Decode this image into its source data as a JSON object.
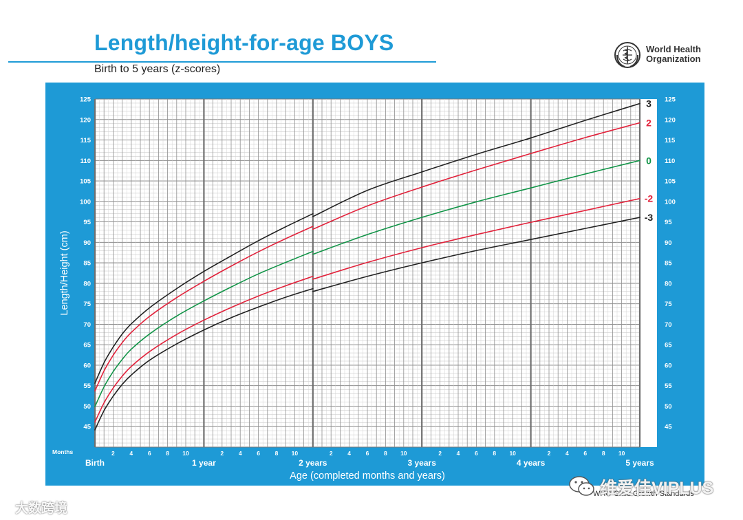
{
  "header": {
    "title": "Length/height-for-age BOYS",
    "subtitle": "Birth to 5 years (z-scores)"
  },
  "logo": {
    "org_name": "World Health\nOrganization",
    "icon": "who-emblem-icon"
  },
  "footer": {
    "note": "WHO Child Growth Standards"
  },
  "watermarks": {
    "main": "维爱佳VIPLUS",
    "main_icon": "wechat-icon",
    "corner": "大数跨境"
  },
  "colors": {
    "brand_blue": "#1e9ad6",
    "sd3": "#222222",
    "sd2": "#e2223b",
    "median": "#119447"
  },
  "chart_data": {
    "type": "line",
    "title": "Length/height-for-age BOYS",
    "subtitle": "Birth to 5 years (z-scores)",
    "xlabel": "Age (completed months and years)",
    "ylabel": "Length/Height (cm)",
    "x_units": "months",
    "xlim": [
      0,
      60
    ],
    "ylim": [
      40,
      125
    ],
    "y_ticks": [
      45,
      50,
      55,
      60,
      65,
      70,
      75,
      80,
      85,
      90,
      95,
      100,
      105,
      110,
      115,
      120,
      125
    ],
    "x_axis_label_left": "Months",
    "x_month_labels": [
      "2",
      "4",
      "6",
      "8",
      "10"
    ],
    "x_year_labels": [
      {
        "month": 0,
        "label": "Birth"
      },
      {
        "month": 12,
        "label": "1 year"
      },
      {
        "month": 24,
        "label": "2 years"
      },
      {
        "month": 36,
        "label": "3 years"
      },
      {
        "month": 48,
        "label": "4 years"
      },
      {
        "month": 60,
        "label": "5 years"
      }
    ],
    "grid": true,
    "series": [
      {
        "name": "3",
        "color": "#222222",
        "segments": [
          {
            "x": [
              0,
              1,
              2,
              3,
              4,
              6,
              9,
              12,
              15,
              18,
              21,
              24
            ],
            "y": [
              55.6,
              60.6,
              64.4,
              67.6,
              70.1,
              74.0,
              78.7,
              82.9,
              86.7,
              90.4,
              93.8,
              97.0
            ]
          },
          {
            "x": [
              24,
              30,
              36,
              42,
              48,
              54,
              60
            ],
            "y": [
              96.3,
              102.7,
              107.2,
              111.5,
              115.5,
              119.8,
              123.9
            ]
          }
        ]
      },
      {
        "name": "2",
        "color": "#e2223b",
        "segments": [
          {
            "x": [
              0,
              1,
              2,
              3,
              4,
              6,
              9,
              12,
              15,
              18,
              21,
              24
            ],
            "y": [
              53.7,
              58.6,
              62.4,
              65.5,
              68.0,
              71.9,
              76.5,
              80.5,
              84.2,
              87.7,
              90.9,
              93.9
            ]
          },
          {
            "x": [
              24,
              30,
              36,
              42,
              48,
              54,
              60
            ],
            "y": [
              93.2,
              98.9,
              103.5,
              107.7,
              111.7,
              115.6,
              119.2
            ]
          }
        ]
      },
      {
        "name": "0",
        "color": "#119447",
        "segments": [
          {
            "x": [
              0,
              1,
              2,
              3,
              4,
              6,
              9,
              12,
              15,
              18,
              21,
              24
            ],
            "y": [
              49.9,
              54.7,
              58.4,
              61.4,
              63.9,
              67.6,
              72.0,
              75.7,
              79.1,
              82.3,
              85.1,
              87.8
            ]
          },
          {
            "x": [
              24,
              30,
              36,
              42,
              48,
              54,
              60
            ],
            "y": [
              87.1,
              91.9,
              96.1,
              99.9,
              103.3,
              106.7,
              110.0
            ]
          }
        ]
      },
      {
        "name": "-2",
        "color": "#e2223b",
        "segments": [
          {
            "x": [
              0,
              1,
              2,
              3,
              4,
              6,
              9,
              12,
              15,
              18,
              21,
              24
            ],
            "y": [
              46.1,
              50.8,
              54.4,
              57.3,
              59.7,
              63.3,
              67.5,
              71.0,
              74.1,
              76.9,
              79.4,
              81.7
            ]
          },
          {
            "x": [
              24,
              30,
              36,
              42,
              48,
              54,
              60
            ],
            "y": [
              81.0,
              85.1,
              88.7,
              91.9,
              94.9,
              97.8,
              100.7
            ]
          }
        ]
      },
      {
        "name": "-3",
        "color": "#222222",
        "segments": [
          {
            "x": [
              0,
              1,
              2,
              3,
              4,
              6,
              9,
              12,
              15,
              18,
              21,
              24
            ],
            "y": [
              44.2,
              48.9,
              52.4,
              55.3,
              57.6,
              61.2,
              65.2,
              68.6,
              71.6,
              74.2,
              76.6,
              78.7
            ]
          },
          {
            "x": [
              24,
              30,
              36,
              42,
              48,
              54,
              60
            ],
            "y": [
              78.0,
              81.7,
              85.0,
              88.0,
              90.7,
              93.4,
              96.1
            ]
          }
        ]
      }
    ]
  }
}
